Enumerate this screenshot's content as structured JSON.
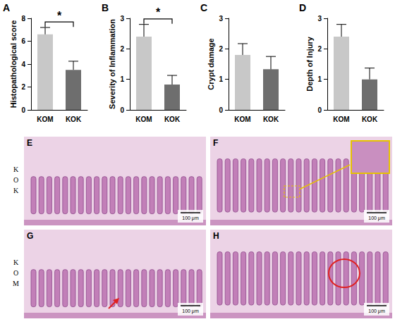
{
  "chart_data": [
    {
      "panel": "A",
      "type": "bar",
      "y_label": "Histopathological score",
      "categories": [
        "KOM",
        "KOK"
      ],
      "values": [
        6.6,
        3.5
      ],
      "errors": [
        0.6,
        0.75
      ],
      "colors": [
        "#c8c8c8",
        "#6e6e6e"
      ],
      "ylim": [
        0,
        8
      ],
      "yticks": [
        0,
        2,
        4,
        6,
        8
      ],
      "grid": false,
      "annotations": [
        {
          "text": "*",
          "from": "KOM",
          "to": "KOK"
        }
      ]
    },
    {
      "panel": "B",
      "type": "bar",
      "y_label": "Severity of Inflammation",
      "categories": [
        "KOM",
        "KOK"
      ],
      "values": [
        2.4,
        0.83
      ],
      "errors": [
        0.4,
        0.3
      ],
      "colors": [
        "#c8c8c8",
        "#6e6e6e"
      ],
      "ylim": [
        0,
        3
      ],
      "yticks": [
        0,
        1,
        2,
        3
      ],
      "grid": false,
      "annotations": [
        {
          "text": "*",
          "from": "KOM",
          "to": "KOK"
        }
      ]
    },
    {
      "panel": "C",
      "type": "bar",
      "y_label": "Crypt damage",
      "categories": [
        "KOM",
        "KOK"
      ],
      "values": [
        1.8,
        1.33
      ],
      "errors": [
        0.37,
        0.42
      ],
      "colors": [
        "#c8c8c8",
        "#6e6e6e"
      ],
      "ylim": [
        0,
        3
      ],
      "yticks": [
        0,
        1,
        2,
        3
      ],
      "grid": false
    },
    {
      "panel": "D",
      "type": "bar",
      "y_label": "Depth of Injury",
      "categories": [
        "KOM",
        "KOK"
      ],
      "values": [
        2.4,
        1.0
      ],
      "errors": [
        0.4,
        0.37
      ],
      "colors": [
        "#c8c8c8",
        "#6e6e6e"
      ],
      "ylim": [
        0,
        3
      ],
      "yticks": [
        0,
        1,
        2,
        3
      ],
      "grid": false
    }
  ],
  "image_panels": {
    "rows": [
      {
        "label": "KOK",
        "panels": [
          "E",
          "F"
        ]
      },
      {
        "label": "KOM",
        "panels": [
          "G",
          "H"
        ]
      }
    ],
    "scale_bar": "100 μm"
  }
}
